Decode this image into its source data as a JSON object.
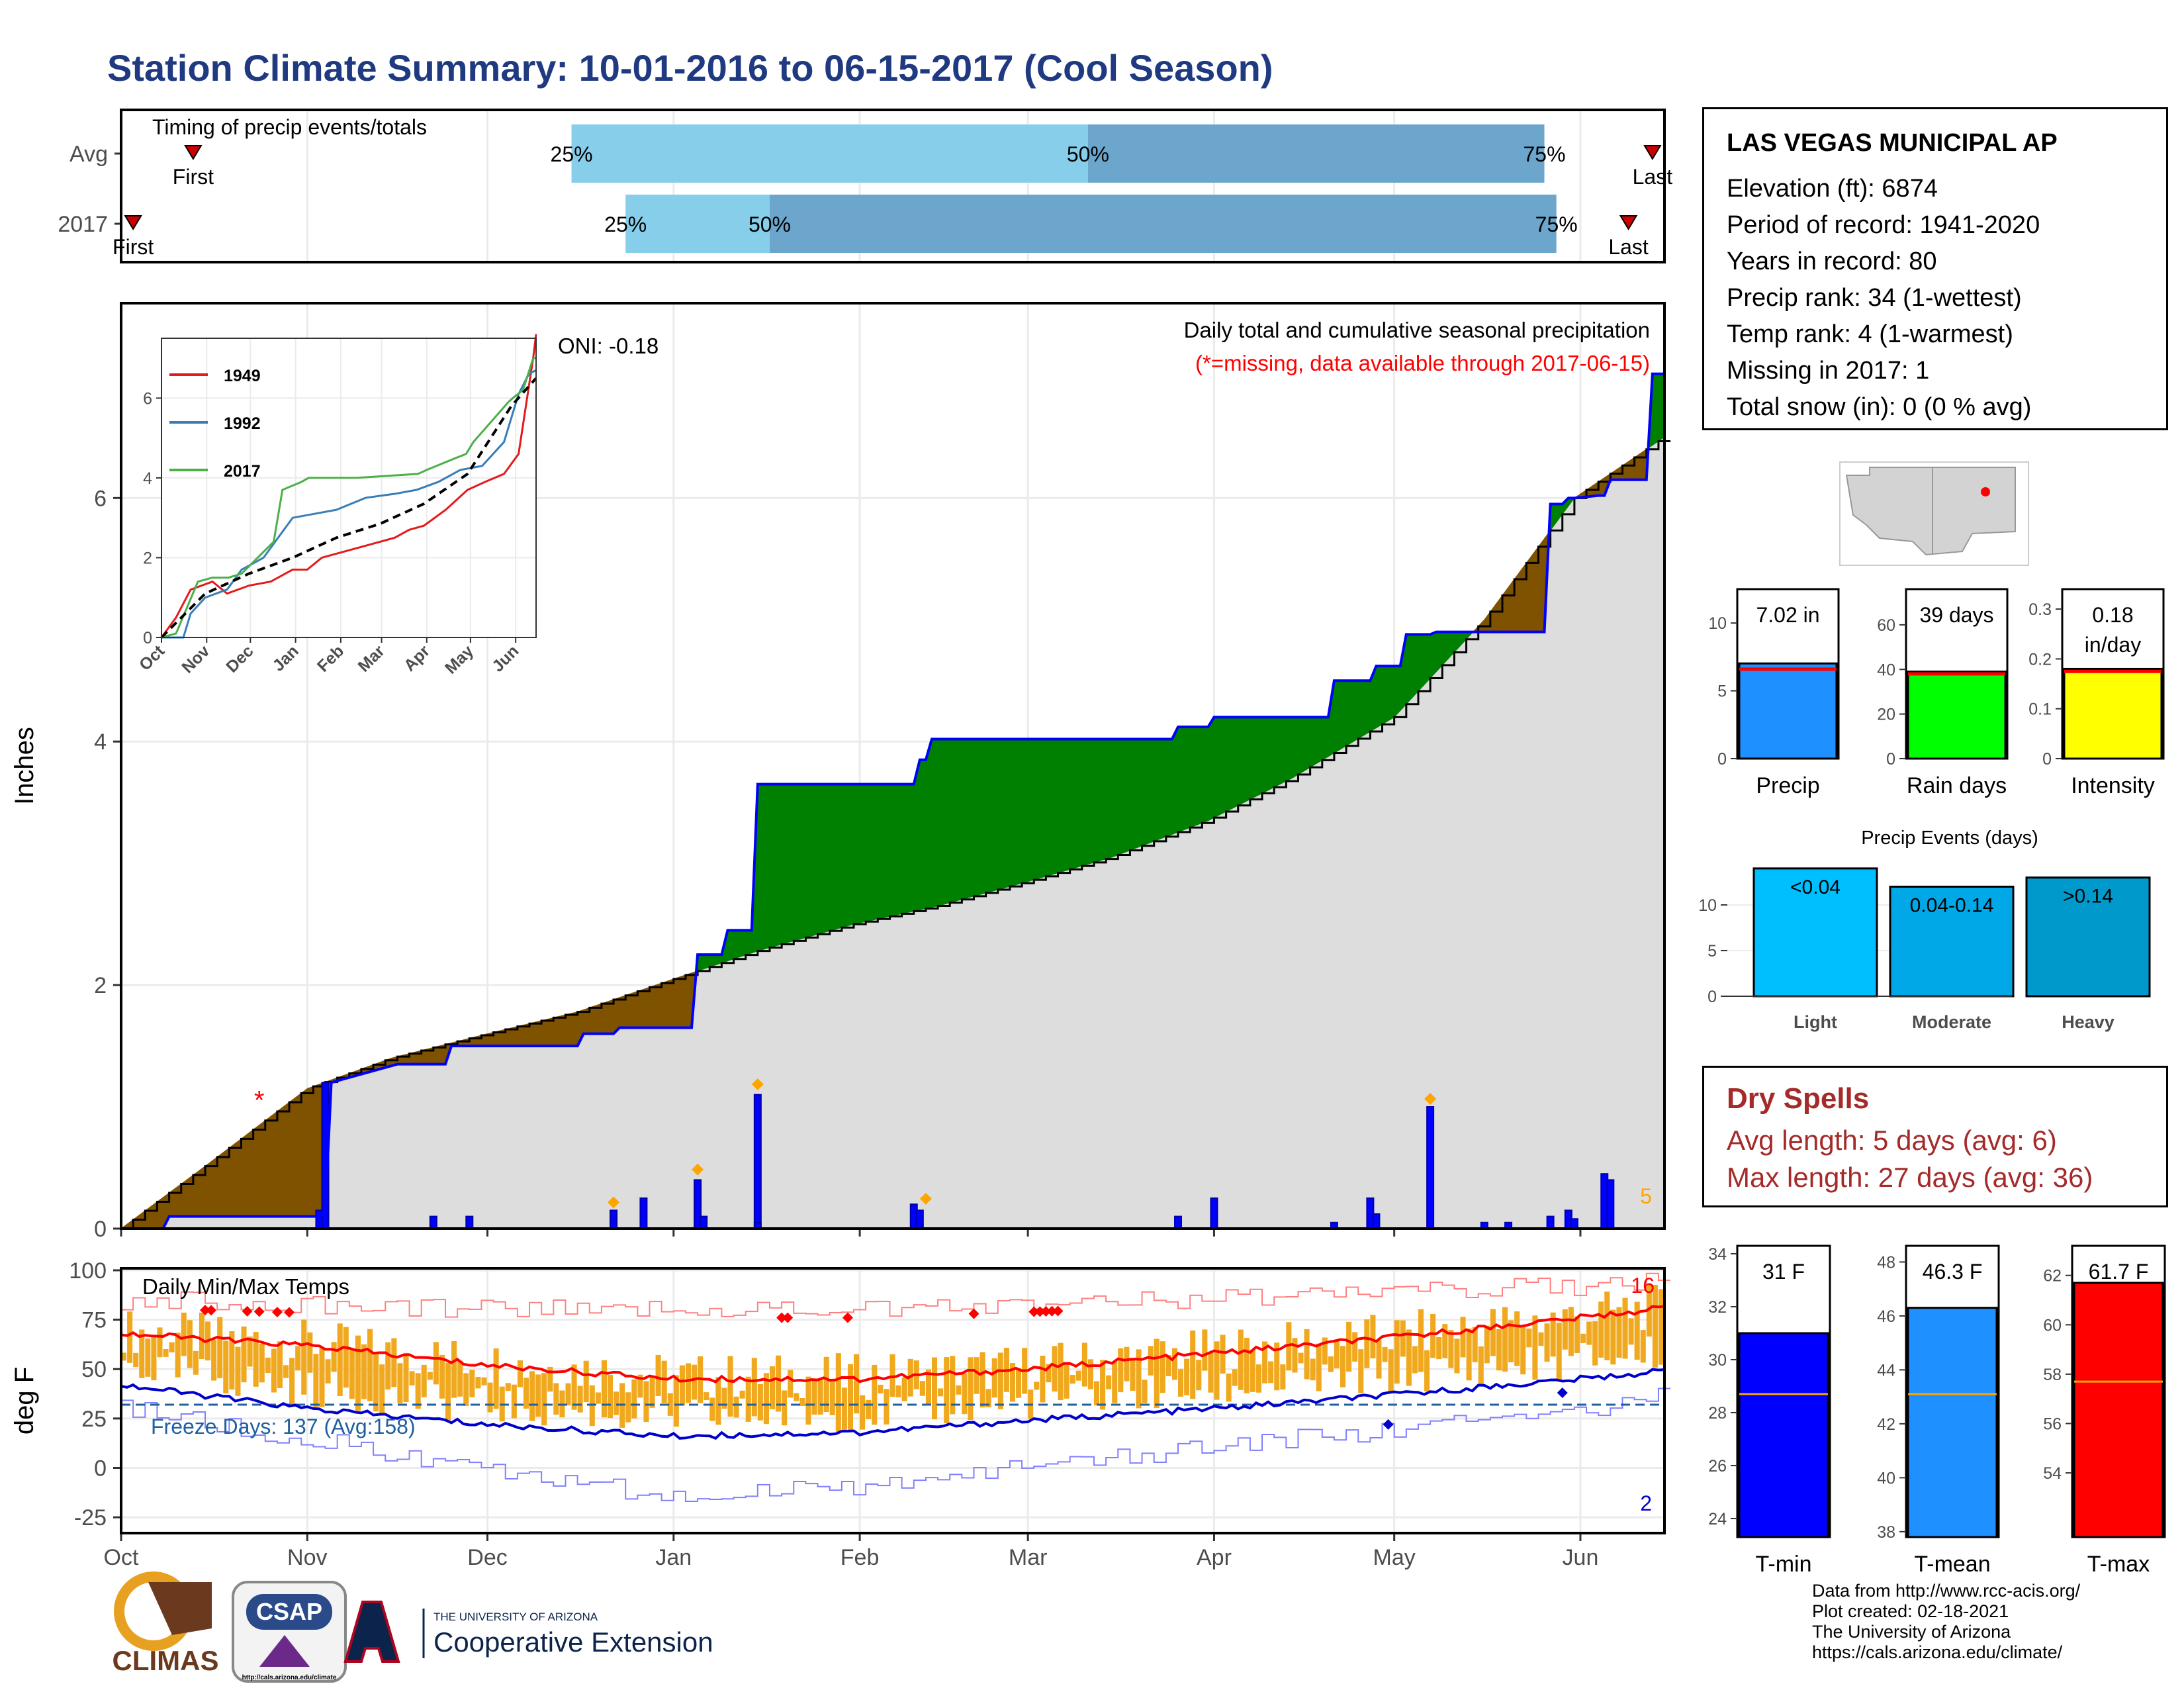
{
  "title": "Station Climate Summary: 10-01-2016 to 06-15-2017 (Cool Season)",
  "station": {
    "name": "LAS VEGAS MUNICIPAL AP",
    "lines": [
      "Elevation (ft): 6874",
      "Period of record: 1941-2020",
      "Years in record: 80",
      "Precip rank: 34 (1-wettest)",
      "Temp rank: 4 (1-warmest)",
      "Missing in 2017: 1",
      "Total snow (in): 0 (0 % avg)"
    ]
  },
  "dry_spells": {
    "title": "Dry Spells",
    "avg": "Avg length: 5 days (avg: 6)",
    "max": "Max length: 27 days (avg: 36)"
  },
  "credits": [
    "Data from http://www.rcc-acis.org/",
    "Plot created: 02-18-2021",
    "The University of Arizona",
    "https://cals.arizona.edu/climate/"
  ],
  "logos": {
    "climas": "CLIMAS",
    "csap": "CSAP",
    "csap_url": "http://cals.arizona.edu/climate",
    "ua_small": "THE UNIVERSITY OF ARIZONA",
    "ua_big": "Cooperative Extension"
  },
  "colors": {
    "title": "#1f3a80",
    "wet_fill": "#008000",
    "dry_fill": "#7f5200",
    "normal_fill": "#dddddd",
    "daily_bar": "#0000ff",
    "temp_bar": "#f0a81e",
    "tmax_line": "#ff0000",
    "tmin_line": "#0000cd",
    "dry_text": "#a52a2a"
  },
  "chart_data": [
    {
      "id": "timing",
      "type": "bar",
      "title": "Timing of precip events/totals",
      "x_axis": "Oct 1 to Jun 15 (day of season)",
      "rows": [
        {
          "label": "Avg",
          "first_day": 12,
          "p25_day": 75,
          "p50_day": 161,
          "p75_day": 237,
          "last_day": 255,
          "labels": {
            "first": "First",
            "last": "Last",
            "p25": "25%",
            "p50": "50%",
            "p75": "75%"
          }
        },
        {
          "label": "2017",
          "first_day": 2,
          "p25_day": 84,
          "p50_day": 108,
          "p75_day": 239,
          "last_day": 251,
          "labels": {
            "first": "First",
            "last": "Last",
            "p25": "25%",
            "p50": "50%",
            "p75": "75%"
          }
        }
      ]
    },
    {
      "id": "cumulative",
      "type": "area",
      "title": "Daily total and cumulative seasonal precipitation",
      "subtitle": "(*=missing, data available through 2017-06-15)",
      "annotation_oni": "ONI: -0.18",
      "corner_note": "5",
      "ylabel": "Inches",
      "ylim": [
        0,
        7.6
      ],
      "yticks": [
        0,
        2,
        4,
        6
      ],
      "x_months": [
        "Oct",
        "Nov",
        "Dec",
        "Jan",
        "Feb",
        "Mar",
        "Apr",
        "May",
        "Jun"
      ],
      "normal_cumulative": {
        "day": [
          0,
          15,
          31,
          45,
          61,
          76,
          92,
          106,
          122,
          136,
          151,
          165,
          181,
          195,
          212,
          227,
          242,
          257
        ],
        "inches": [
          0,
          0.55,
          1.15,
          1.4,
          1.6,
          1.78,
          2.05,
          2.28,
          2.5,
          2.65,
          2.85,
          3.05,
          3.35,
          3.7,
          4.2,
          5.0,
          6.0,
          6.5
        ]
      },
      "cumulative_2017": {
        "day": [
          0,
          7,
          8,
          33,
          34,
          35,
          46,
          54,
          55,
          76,
          77,
          82,
          83,
          95,
          96,
          100,
          101,
          105,
          106,
          132,
          133,
          134,
          135,
          175,
          176,
          181,
          182,
          201,
          202,
          208,
          209,
          213,
          214,
          218,
          219,
          237,
          238,
          240,
          241,
          242,
          246,
          247,
          248,
          254,
          255,
          257
        ],
        "inches": [
          0,
          0,
          0.1,
          0.1,
          0.15,
          1.2,
          1.35,
          1.35,
          1.5,
          1.5,
          1.6,
          1.6,
          1.65,
          1.65,
          2.25,
          2.25,
          2.45,
          2.45,
          3.65,
          3.65,
          3.85,
          3.85,
          4.02,
          4.02,
          4.12,
          4.12,
          4.2,
          4.2,
          4.5,
          4.5,
          4.62,
          4.62,
          4.88,
          4.88,
          4.9,
          4.9,
          5.95,
          5.95,
          6.0,
          6.0,
          6.02,
          6.02,
          6.15,
          6.15,
          7.02,
          7.02
        ]
      },
      "daily_precip": [
        {
          "day": 33,
          "inches": 0.15
        },
        {
          "day": 34,
          "inches": 1.2
        },
        {
          "day": 52,
          "inches": 0.1
        },
        {
          "day": 58,
          "inches": 0.1
        },
        {
          "day": 82,
          "inches": 0.15
        },
        {
          "day": 87,
          "inches": 0.25
        },
        {
          "day": 96,
          "inches": 0.4
        },
        {
          "day": 97,
          "inches": 0.1
        },
        {
          "day": 106,
          "inches": 1.1
        },
        {
          "day": 106,
          "inches": 0.05
        },
        {
          "day": 132,
          "inches": 0.2
        },
        {
          "day": 133,
          "inches": 0.15
        },
        {
          "day": 176,
          "inches": 0.1
        },
        {
          "day": 182,
          "inches": 0.25
        },
        {
          "day": 202,
          "inches": 0.05
        },
        {
          "day": 208,
          "inches": 0.25
        },
        {
          "day": 209,
          "inches": 0.12
        },
        {
          "day": 218,
          "inches": 1.0
        },
        {
          "day": 227,
          "inches": 0.05
        },
        {
          "day": 231,
          "inches": 0.05
        },
        {
          "day": 238,
          "inches": 0.1
        },
        {
          "day": 241,
          "inches": 0.15
        },
        {
          "day": 242,
          "inches": 0.08
        },
        {
          "day": 247,
          "inches": 0.45
        },
        {
          "day": 248,
          "inches": 0.4
        }
      ]
    },
    {
      "id": "inset",
      "type": "line",
      "ylim": [
        0,
        7.5
      ],
      "yticks": [
        0,
        2,
        4,
        6
      ],
      "x_months": [
        "Oct",
        "Nov",
        "Dec",
        "Jan",
        "Feb",
        "Mar",
        "Apr",
        "May",
        "Jun"
      ],
      "series": [
        {
          "name": "1949",
          "color": "#e41a1c",
          "day": [
            0,
            10,
            20,
            35,
            45,
            60,
            75,
            90,
            100,
            110,
            120,
            130,
            140,
            160,
            170,
            180,
            195,
            210,
            222,
            235,
            245,
            250,
            255,
            257
          ],
          "inches": [
            0,
            0.5,
            1.2,
            1.4,
            1.1,
            1.3,
            1.4,
            1.7,
            1.7,
            2.0,
            2.1,
            2.2,
            2.3,
            2.5,
            2.7,
            2.8,
            3.2,
            3.7,
            3.9,
            4.1,
            4.6,
            5.8,
            7.0,
            7.6
          ]
        },
        {
          "name": "1992",
          "color": "#377eb8",
          "day": [
            0,
            15,
            20,
            30,
            45,
            55,
            70,
            80,
            90,
            105,
            120,
            140,
            160,
            175,
            190,
            205,
            220,
            235,
            245,
            252,
            257
          ],
          "inches": [
            0,
            0,
            0.6,
            1.0,
            1.2,
            1.7,
            2.0,
            2.5,
            3.0,
            3.1,
            3.2,
            3.5,
            3.6,
            3.7,
            3.9,
            4.2,
            4.3,
            4.9,
            6.1,
            6.6,
            6.7
          ]
        },
        {
          "name": "2017",
          "color": "#4daf4a",
          "day": [
            0,
            10,
            25,
            35,
            46,
            55,
            77,
            83,
            96,
            101,
            106,
            134,
            176,
            182,
            202,
            209,
            214,
            238,
            241,
            248,
            255,
            257
          ],
          "inches": [
            0,
            0.1,
            1.4,
            1.5,
            1.5,
            1.6,
            2.4,
            3.7,
            3.9,
            4.0,
            4.0,
            4.0,
            4.1,
            4.2,
            4.5,
            4.6,
            4.9,
            5.9,
            6.0,
            6.2,
            7.0,
            7.0
          ]
        },
        {
          "name": "Avg",
          "color": "#000000",
          "dash": true,
          "day": [
            0,
            30,
            60,
            90,
            120,
            150,
            180,
            210,
            240,
            257
          ],
          "inches": [
            0,
            1.1,
            1.6,
            2.0,
            2.5,
            2.85,
            3.35,
            4.1,
            5.8,
            6.5
          ]
        }
      ]
    },
    {
      "id": "temps",
      "type": "line",
      "title": "Daily Min/Max Temps",
      "ylabel": "deg F",
      "ylim": [
        -33,
        101
      ],
      "yticks": [
        -25,
        0,
        25,
        50,
        75,
        100
      ],
      "x_months": [
        "Oct",
        "Nov",
        "Dec",
        "Jan",
        "Feb",
        "Mar",
        "Apr",
        "May",
        "Jun"
      ],
      "freeze_note": "Freeze Days: 137 (Avg:158)",
      "freeze_line": 32,
      "record_high_count": "16",
      "record_low_count": "2",
      "avg_tmax": {
        "day": [
          0,
          31,
          61,
          92,
          123,
          151,
          182,
          212,
          243,
          257
        ],
        "temp": [
          68,
          62,
          52,
          45,
          45,
          50,
          58,
          66,
          76,
          81
        ]
      },
      "avg_tmin": {
        "day": [
          0,
          31,
          61,
          92,
          123,
          151,
          182,
          212,
          243,
          257
        ],
        "temp": [
          42,
          30,
          22,
          16,
          18,
          24,
          30,
          37,
          45,
          49
        ]
      },
      "record_highs_band": {
        "day": [
          0,
          61,
          122,
          182,
          243,
          257
        ],
        "temp": [
          85,
          80,
          80,
          86,
          92,
          94
        ]
      },
      "record_lows_band": {
        "day": [
          0,
          61,
          92,
          122,
          182,
          243,
          257
        ],
        "temp": [
          30,
          0,
          -15,
          -10,
          10,
          30,
          36
        ]
      }
    },
    {
      "id": "precip_summary",
      "type": "bar",
      "panels": [
        {
          "label": "Precip",
          "value_text": "7.02 in",
          "value": 7.02,
          "avg": 6.6,
          "ylim": [
            0,
            12.5
          ],
          "yticks": [
            0,
            5,
            10
          ],
          "color": "#1e90ff"
        },
        {
          "label": "Rain days",
          "value_text": "39 days",
          "value": 39,
          "avg": 38,
          "ylim": [
            0,
            76
          ],
          "yticks": [
            0,
            20,
            40,
            60
          ],
          "color": "#00ff00"
        },
        {
          "label": "Intensity",
          "value_text": "0.18 in/day",
          "value": 0.18,
          "avg": 0.175,
          "ylim": [
            0,
            0.34
          ],
          "yticks": [
            0.0,
            0.1,
            0.2,
            0.3
          ],
          "color": "#ffff00"
        }
      ]
    },
    {
      "id": "precip_events",
      "type": "bar",
      "title": "Precip Events (days)",
      "categories": [
        "Light",
        "Moderate",
        "Heavy"
      ],
      "bar_labels": [
        "<0.04",
        "0.04-0.14",
        ">0.14"
      ],
      "values": [
        14,
        12,
        13
      ],
      "ylim": [
        0,
        14.5
      ],
      "yticks": [
        0,
        5,
        10
      ],
      "colors": [
        "#00bfff",
        "#00a8e8",
        "#0099cc"
      ]
    },
    {
      "id": "temp_summary",
      "type": "bar",
      "panels": [
        {
          "label": "T-min",
          "value_text": "31 F",
          "value": 31,
          "avg": 28.7,
          "ylim": [
            23.3,
            34.3
          ],
          "yticks": [
            24,
            26,
            28,
            30,
            32,
            34
          ],
          "color": "#0000ff"
        },
        {
          "label": "T-mean",
          "value_text": "46.3 F",
          "value": 46.3,
          "avg": 43.1,
          "ylim": [
            37.8,
            48.6
          ],
          "yticks": [
            38,
            40,
            42,
            44,
            46,
            48
          ],
          "color": "#1e90ff"
        },
        {
          "label": "T-max",
          "value_text": "61.7 F",
          "value": 61.7,
          "avg": 57.7,
          "ylim": [
            51.4,
            63.2
          ],
          "yticks": [
            54,
            56,
            58,
            60,
            62
          ],
          "color": "#ff0000"
        }
      ]
    }
  ]
}
